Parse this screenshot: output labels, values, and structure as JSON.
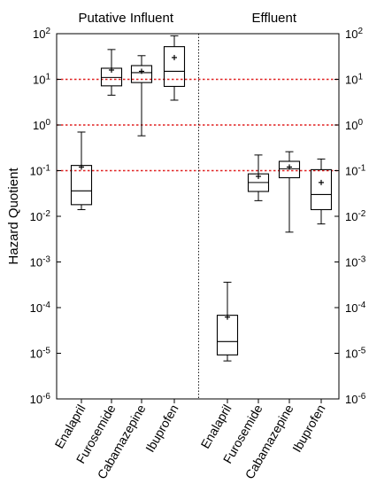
{
  "chart_data": {
    "type": "box",
    "title": "",
    "ylabel": "Hazard Quotient",
    "xlabel": "",
    "yscale": "log",
    "ylim": [
      1e-06,
      100
    ],
    "grid": false,
    "legend": "none",
    "y_ticks": [
      {
        "value": 1e-06,
        "base": "10",
        "exp": "-6"
      },
      {
        "value": 1e-05,
        "base": "10",
        "exp": "-5"
      },
      {
        "value": 0.0001,
        "base": "10",
        "exp": "-4"
      },
      {
        "value": 0.001,
        "base": "10",
        "exp": "-3"
      },
      {
        "value": 0.01,
        "base": "10",
        "exp": "-2"
      },
      {
        "value": 0.1,
        "base": "10",
        "exp": "-1"
      },
      {
        "value": 1,
        "base": "10",
        "exp": "0"
      },
      {
        "value": 10,
        "base": "10",
        "exp": "1"
      },
      {
        "value": 100,
        "base": "10",
        "exp": "2"
      }
    ],
    "reference_lines": [
      {
        "value": 10,
        "color": "#e02020",
        "style": "dotted"
      },
      {
        "value": 1,
        "color": "#e02020",
        "style": "dotted"
      },
      {
        "value": 0.1,
        "color": "#e02020",
        "style": "dotted"
      }
    ],
    "panels": [
      {
        "title": "Putative Influent",
        "groups": [
          {
            "label": "Enalapril",
            "min": 0.014,
            "q1": 0.018,
            "median": 0.036,
            "q3": 0.13,
            "max": 0.7,
            "mean": 0.12
          },
          {
            "label": "Furosemide",
            "min": 4.5,
            "q1": 7.2,
            "median": 11,
            "q3": 17.5,
            "max": 45,
            "mean": 16
          },
          {
            "label": "Cabamazepine",
            "min": 0.58,
            "q1": 8.5,
            "median": 14,
            "q3": 20,
            "max": 33,
            "mean": 15
          },
          {
            "label": "Ibuprofen",
            "min": 3.5,
            "q1": 7,
            "median": 15,
            "q3": 52,
            "max": 90,
            "mean": 30
          }
        ]
      },
      {
        "title": "Effluent",
        "groups": [
          {
            "label": "Enalapril",
            "min": 6.8e-06,
            "q1": 9.2e-06,
            "median": 1.8e-05,
            "q3": 6.8e-05,
            "max": 0.00036,
            "mean": 6.2e-05
          },
          {
            "label": "Furosemide",
            "min": 0.022,
            "q1": 0.035,
            "median": 0.055,
            "q3": 0.085,
            "max": 0.22,
            "mean": 0.075
          },
          {
            "label": "Cabamazepine",
            "min": 0.0045,
            "q1": 0.07,
            "median": 0.11,
            "q3": 0.16,
            "max": 0.26,
            "mean": 0.12
          },
          {
            "label": "Ibuprofen",
            "min": 0.0068,
            "q1": 0.014,
            "median": 0.03,
            "q3": 0.105,
            "max": 0.18,
            "mean": 0.055
          }
        ]
      }
    ]
  },
  "colors": {
    "box_stroke": "#000000",
    "reference_line": "#e02020",
    "panel_divider": "#000000"
  }
}
